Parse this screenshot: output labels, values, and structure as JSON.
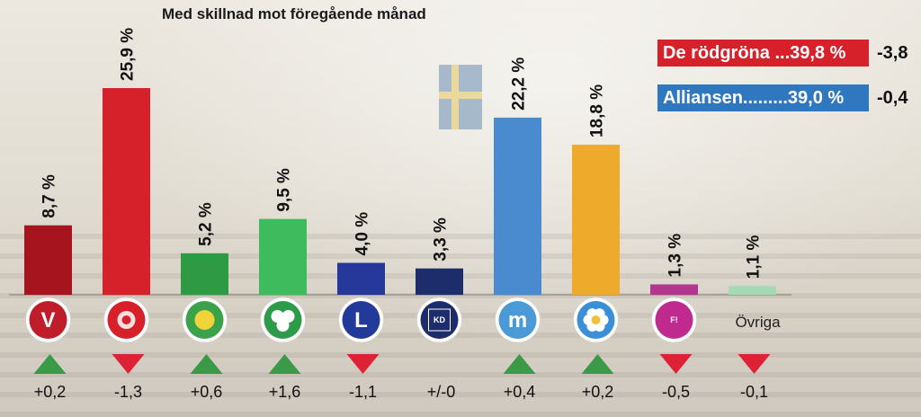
{
  "chart_data": {
    "type": "bar",
    "title": "Med skillnad mot föregående månad",
    "ylim": [
      0,
      27
    ],
    "categories": [
      "V",
      "S",
      "MP",
      "C",
      "L",
      "KD",
      "M",
      "SD",
      "FI",
      "Övriga"
    ],
    "values": [
      8.7,
      25.9,
      5.2,
      9.5,
      4.0,
      3.3,
      22.2,
      18.8,
      1.3,
      1.1
    ],
    "value_labels": [
      "8,7 %",
      "25,9 %",
      "5,2 %",
      "9,5 %",
      "4,0 %",
      "3,3 %",
      "22,2 %",
      "18,8 %",
      "1,3 %",
      "1,1 %"
    ],
    "changes": [
      "+0,2",
      "-1,3",
      "+0,6",
      "+1,6",
      "-1,1",
      "+/-0",
      "+0,4",
      "+0,2",
      "-0,5",
      "-0,1"
    ],
    "change_direction": [
      "up",
      "down",
      "up",
      "up",
      "down",
      "none",
      "up",
      "up",
      "down",
      "down"
    ],
    "colors": [
      "#a6151d",
      "#d6212b",
      "#2f9a44",
      "#3dbb5d",
      "#26399a",
      "#1d2d6b",
      "#4a8bd0",
      "#eeab2b",
      "#b0368e",
      "#a5d8b5"
    ],
    "other_label": "Övriga",
    "logo_letters": [
      "V",
      "",
      "",
      "",
      "L",
      "KD",
      "m",
      "",
      "F!",
      ""
    ]
  },
  "legend": [
    {
      "text": "De rödgröna ...39,8 %",
      "change": "-3,8",
      "color": "#d6212b"
    },
    {
      "text": "Alliansen.........39,0 %",
      "change": "-0,4",
      "color": "#2f78c0"
    }
  ],
  "colors": {
    "up": "#3a9a48",
    "down": "#dd2236"
  }
}
